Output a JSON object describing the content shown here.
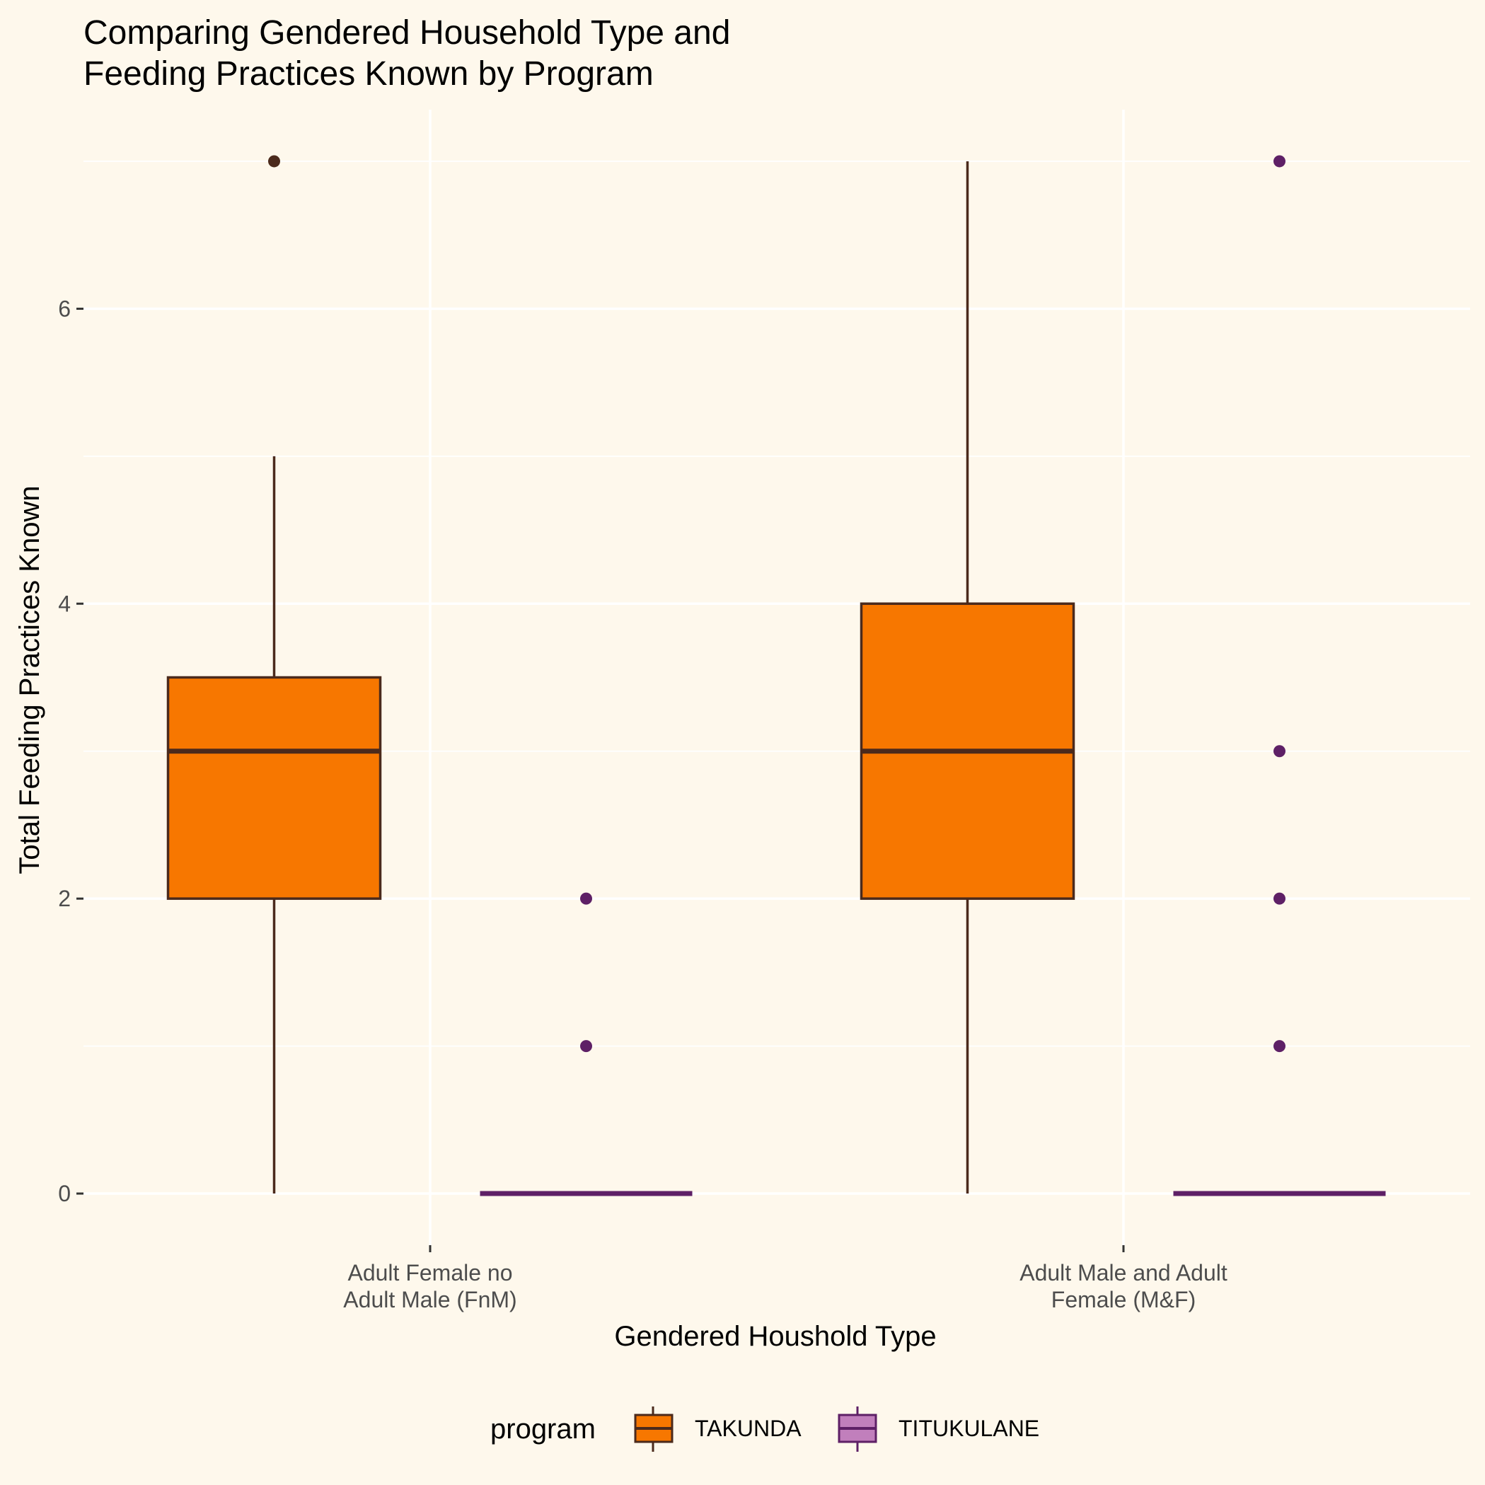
{
  "chart_data": {
    "type": "boxplot",
    "title_lines": [
      "Comparing Gendered Household Type and",
      "Feeding Practices Known by Program"
    ],
    "xlabel": "Gendered Houshold Type",
    "ylabel": "Total Feeding Practices Known",
    "categories": [
      [
        "Adult Female no",
        "Adult Male (FnM)"
      ],
      [
        "Adult Male and Adult",
        "Female (M&F)"
      ]
    ],
    "ylim": [
      -0.35,
      7.35
    ],
    "yticks": [
      "0",
      "2",
      "4",
      "6"
    ],
    "legend": {
      "title": "program",
      "position": "bottom",
      "entries": [
        "TAKUNDA",
        "TITUKULANE"
      ]
    },
    "series": [
      {
        "name": "TAKUNDA",
        "fill": "#F77700",
        "stroke": "#4B2A1C",
        "legend_fill": "#F77700",
        "boxes": [
          {
            "lower_whisker": 0,
            "q1": 2,
            "median": 3,
            "q3": 3.5,
            "upper_whisker": 5,
            "outliers": [
              7
            ]
          },
          {
            "lower_whisker": 0,
            "q1": 2,
            "median": 3,
            "q3": 4,
            "upper_whisker": 7,
            "outliers": []
          }
        ]
      },
      {
        "name": "TITUKULANE",
        "fill": "#C17FBC",
        "stroke": "#5E2066",
        "legend_fill": "#C17FBC",
        "boxes": [
          {
            "lower_whisker": 0,
            "q1": 0,
            "median": 0,
            "q3": 0,
            "upper_whisker": 0,
            "outliers": [
              1,
              2
            ]
          },
          {
            "lower_whisker": 0,
            "q1": 0,
            "median": 0,
            "q3": 0,
            "upper_whisker": 0,
            "outliers": [
              1,
              2,
              3,
              7
            ]
          }
        ]
      }
    ],
    "grid": true,
    "background": "#FEF8EC"
  }
}
